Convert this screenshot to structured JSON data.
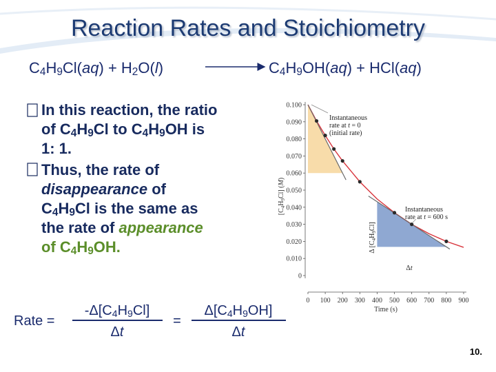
{
  "title": "Reaction Rates and Stoichiometry",
  "equation": {
    "reactants": [
      {
        "t": "C"
      },
      {
        "t": "4",
        "s": "sub"
      },
      {
        "t": "H"
      },
      {
        "t": "9",
        "s": "sub"
      },
      {
        "t": "Cl("
      },
      {
        "t": "aq",
        "s": "i"
      },
      {
        "t": ") + H"
      },
      {
        "t": "2",
        "s": "sub"
      },
      {
        "t": "O("
      },
      {
        "t": "l",
        "s": "i"
      },
      {
        "t": ")"
      }
    ],
    "products": [
      {
        "t": "C"
      },
      {
        "t": "4",
        "s": "sub"
      },
      {
        "t": "H"
      },
      {
        "t": "9",
        "s": "sub"
      },
      {
        "t": "OH("
      },
      {
        "t": "aq",
        "s": "i"
      },
      {
        "t": ") + HCl("
      },
      {
        "t": "aq",
        "s": "i"
      },
      {
        "t": ")"
      }
    ]
  },
  "bullets": [
    {
      "lines": [
        [
          {
            "t": "In this reaction, the ratio"
          }
        ],
        [
          {
            "t": "of C"
          },
          {
            "t": "4",
            "s": "sub"
          },
          {
            "t": "H"
          },
          {
            "t": "9",
            "s": "sub"
          },
          {
            "t": "Cl to C"
          },
          {
            "t": "4",
            "s": "sub"
          },
          {
            "t": "H"
          },
          {
            "t": "9",
            "s": "sub"
          },
          {
            "t": "OH is"
          }
        ],
        [
          {
            "t": "1: 1."
          }
        ]
      ]
    },
    {
      "lines": [
        [
          {
            "t": "Thus, the rate of"
          }
        ],
        [
          {
            "t": "disappearance",
            "s": "i"
          },
          {
            "t": " of"
          }
        ],
        [
          {
            "t": "C"
          },
          {
            "t": "4",
            "s": "sub"
          },
          {
            "t": "H"
          },
          {
            "t": "9",
            "s": "sub"
          },
          {
            "t": "Cl is the same as"
          }
        ],
        [
          {
            "t": "the rate of "
          },
          {
            "t": "appearance",
            "s": "gi"
          }
        ],
        [
          {
            "t": "of C",
            "s": "g"
          },
          {
            "t": "4",
            "s": "gsub"
          },
          {
            "t": "H",
            "s": "g"
          },
          {
            "t": "9",
            "s": "gsub"
          },
          {
            "t": "OH.",
            "s": "g"
          }
        ]
      ]
    }
  ],
  "rate_equation": {
    "label": "Rate =",
    "left": {
      "numerator": [
        {
          "t": "-Δ[C"
        },
        {
          "t": "4",
          "s": "sub"
        },
        {
          "t": "H"
        },
        {
          "t": "9",
          "s": "sub"
        },
        {
          "t": "Cl]"
        }
      ],
      "denominator": [
        {
          "t": "Δ"
        },
        {
          "t": "t",
          "s": "i"
        }
      ]
    },
    "equals": "=",
    "right": {
      "numerator": [
        {
          "t": "Δ[C"
        },
        {
          "t": "4",
          "s": "sub"
        },
        {
          "t": "H"
        },
        {
          "t": "9",
          "s": "sub"
        },
        {
          "t": "OH]"
        }
      ],
      "denominator": [
        {
          "t": "Δ"
        },
        {
          "t": "t",
          "s": "i"
        }
      ]
    }
  },
  "figure": {
    "ylabel": [
      {
        "t": "[C"
      },
      {
        "t": "4",
        "s": "sub"
      },
      {
        "t": "H"
      },
      {
        "t": "9",
        "s": "sub"
      },
      {
        "t": "Cl] ("
      },
      {
        "t": "M",
        "s": "i"
      },
      {
        "t": ")"
      }
    ],
    "xlabel": "Time (s)",
    "xlim": [
      0,
      900
    ],
    "ylim": [
      0,
      0.1
    ],
    "xticks": [
      0,
      100,
      200,
      300,
      400,
      500,
      600,
      700,
      800,
      900
    ],
    "yticks": [
      0,
      {
        "value": 0.01,
        "label": "0.010"
      },
      {
        "value": 0.02,
        "label": "0.020"
      },
      {
        "value": 0.03,
        "label": "0.030"
      },
      {
        "value": 0.04,
        "label": "0.040"
      },
      {
        "value": 0.05,
        "label": "0.050"
      },
      {
        "value": 0.06,
        "label": "0.060"
      },
      {
        "value": 0.07,
        "label": "0.070"
      },
      {
        "value": 0.08,
        "label": "0.080"
      },
      {
        "value": 0.09,
        "label": "0.090"
      },
      {
        "value": 0.1,
        "label": "0.100"
      }
    ],
    "triangles": [
      {
        "color": "#f8dcaa",
        "x": [
          0,
          0,
          200
        ],
        "y": [
          0.1,
          0.06,
          0.06
        ]
      },
      {
        "color": "#8fa8d2",
        "x": [
          400,
          400,
          800
        ],
        "y": [
          0.0432,
          0.0168,
          0.0168
        ]
      }
    ],
    "curve": {
      "color": "#d8343c",
      "x": [
        0,
        50,
        100,
        150,
        200,
        300,
        400,
        500,
        600,
        700,
        800,
        900
      ],
      "y": [
        0.1,
        0.0905,
        0.082,
        0.0741,
        0.0671,
        0.0549,
        0.0448,
        0.0368,
        0.03,
        0.0245,
        0.02,
        0.0165
      ]
    },
    "tangents": [
      {
        "color": "#6a6a6a",
        "x": [
          0,
          220
        ],
        "y": [
          0.1,
          0.056
        ]
      },
      {
        "color": "#6a6a6a",
        "x": [
          350,
          820
        ],
        "y": [
          0.0465,
          0.0155
        ]
      }
    ],
    "points": {
      "color": "#2a2a2a",
      "x": [
        50,
        100,
        150,
        200,
        300,
        500,
        600,
        800
      ],
      "y": [
        0.0905,
        0.082,
        0.0741,
        0.0671,
        0.0549,
        0.0368,
        0.03,
        0.02
      ]
    },
    "annotations": [
      {
        "lines": [
          [
            {
              "t": "Instantaneous"
            }
          ],
          [
            {
              "t": "rate at "
            },
            {
              "t": "t",
              "s": "i"
            },
            {
              "t": " = 0"
            }
          ],
          [
            {
              "t": "(initial rate)"
            }
          ]
        ]
      },
      {
        "lines": [
          [
            {
              "t": "Instantaneous"
            }
          ],
          [
            {
              "t": "rate at "
            },
            {
              "t": "t",
              "s": "i"
            },
            {
              "t": " = 600 s"
            }
          ]
        ]
      }
    ],
    "delta_conc": [
      {
        "t": "Δ [C"
      },
      {
        "t": "4",
        "s": "sub"
      },
      {
        "t": "H"
      },
      {
        "t": "9",
        "s": "sub"
      },
      {
        "t": "Cl]"
      }
    ],
    "delta_t": [
      {
        "t": "Δ"
      },
      {
        "t": "t",
        "s": "i"
      }
    ]
  },
  "page_number": "10."
}
